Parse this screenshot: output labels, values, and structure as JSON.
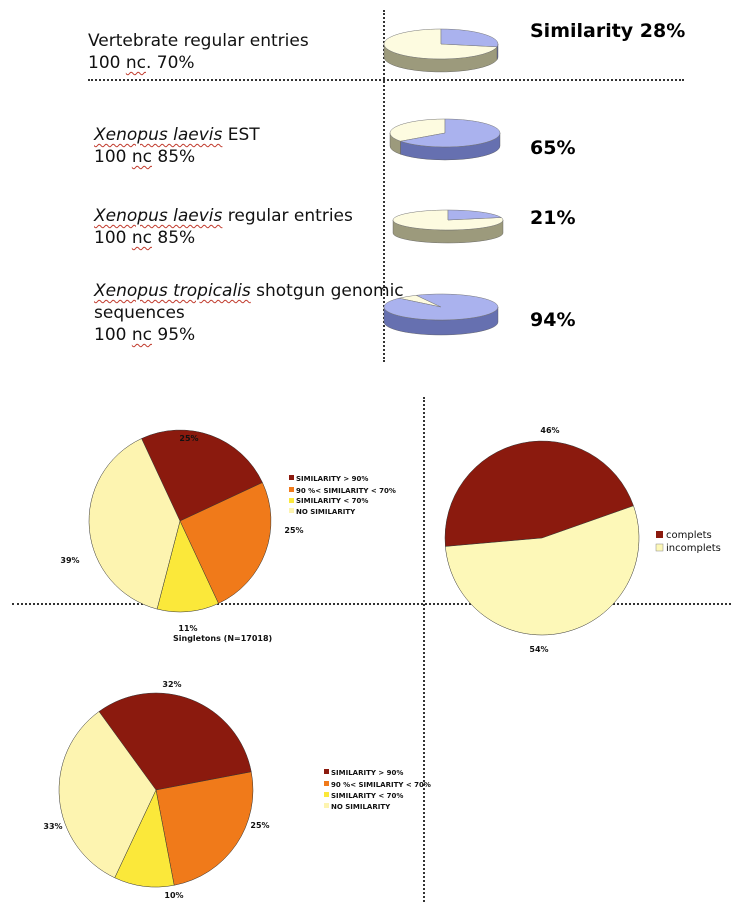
{
  "top_rows": [
    {
      "line1_a": "Vertebrate regular entries",
      "line1_italic": "",
      "line1_b": "",
      "line2": "",
      "line3_pre": "100 ",
      "line3_sq": "nc",
      "line3_post": ". 70%",
      "percent_label": "Similarity 28%",
      "fraction": 0.28
    },
    {
      "line1_a": "",
      "line1_italic": "Xenopus laevis",
      "line1_b": " EST",
      "line2": "",
      "line3_pre": "100 ",
      "line3_sq": "nc",
      "line3_post": " 85%",
      "percent_label": "65%",
      "fraction": 0.65
    },
    {
      "line1_a": "",
      "line1_italic": "Xenopus laevis",
      "line1_b": " regular entries",
      "line2": "",
      "line3_pre": "100 ",
      "line3_sq": "nc",
      "line3_post": " 85%",
      "percent_label": "21%",
      "fraction": 0.21
    },
    {
      "line1_a": "",
      "line1_italic": "Xenopus tropicalis",
      "line1_b": " shotgun genomic",
      "line2": "sequences",
      "line3_pre": "100 ",
      "line3_sq": "nc",
      "line3_post": " 95%",
      "percent_label": "94%",
      "fraction": 0.94
    }
  ],
  "colors": {
    "sim_top": "#aab2ee",
    "sim_side": "#6670b0",
    "rest_top": "#fdfbe0",
    "rest_side": "#9c9a7c",
    "sim90": "#8b1a0e",
    "sim70_90": "#f07a1a",
    "simlt70": "#fbe83a",
    "nosim": "#fdf4b0",
    "complets": "#8b1a0e",
    "incomplets": "#fdf8b8"
  },
  "chart_data": [
    {
      "type": "pie",
      "title": "",
      "categories": [
        "Similarity",
        "No similarity"
      ],
      "values": [
        28,
        72
      ]
    },
    {
      "type": "pie",
      "title": "",
      "categories": [
        "Similarity",
        "No similarity"
      ],
      "values": [
        65,
        35
      ]
    },
    {
      "type": "pie",
      "title": "",
      "categories": [
        "Similarity",
        "No similarity"
      ],
      "values": [
        21,
        79
      ]
    },
    {
      "type": "pie",
      "title": "",
      "categories": [
        "Similarity",
        "No similarity"
      ],
      "values": [
        94,
        6
      ]
    },
    {
      "type": "pie",
      "title": "Singletons (N=17018)",
      "categories": [
        "SIMILARITY > 90%",
        "90 %< SIMILARITY < 70%",
        "SIMILARITY < 70%",
        "NO SIMILARITY"
      ],
      "values": [
        25,
        25,
        11,
        39
      ],
      "labels": [
        "25%",
        "25%",
        "11%",
        "39%"
      ],
      "legend": [
        "SIMILARITY > 90%",
        "90 %< SIMILARITY < 70%",
        "SIMILARITY < 70%",
        "NO SIMILARITY"
      ]
    },
    {
      "type": "pie",
      "title": "",
      "categories": [
        "complets",
        "incomplets"
      ],
      "values": [
        46,
        54
      ],
      "labels": [
        "46%",
        "54%"
      ],
      "legend": [
        "complets",
        "incomplets"
      ]
    },
    {
      "type": "pie",
      "title": "",
      "categories": [
        "SIMILARITY > 90%",
        "90 %< SIMILARITY < 70%",
        "SIMILARITY < 70%",
        "NO SIMILARITY"
      ],
      "values": [
        32,
        25,
        10,
        33
      ],
      "labels": [
        "32%",
        "25%",
        "10%",
        "33%"
      ],
      "legend": [
        "SIMILARITY > 90%",
        "90 %< SIMILARITY < 70%",
        "SIMILARITY < 70%",
        "NO SIMILARITY"
      ]
    }
  ]
}
